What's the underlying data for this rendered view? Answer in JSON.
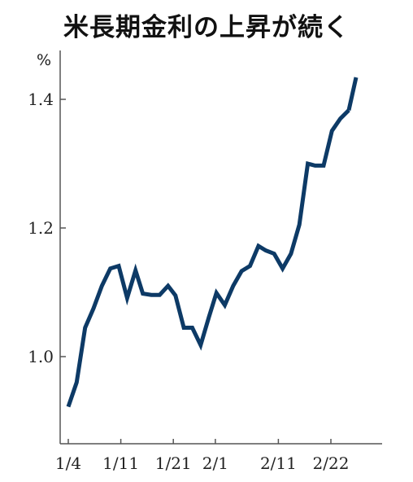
{
  "chart_data": {
    "type": "line",
    "title": "米長期金利の上昇が続く",
    "ylabel": "%",
    "xlabel": "",
    "ylim": [
      0.87,
      1.5
    ],
    "yticks": [
      1.0,
      1.2,
      1.4
    ],
    "ytick_labels": [
      "1.0",
      "1.2",
      "1.4"
    ],
    "xlim": [
      0,
      34.6
    ],
    "xticks": [
      0,
      5,
      10,
      14,
      20,
      25
    ],
    "xtick_labels": [
      "1/4",
      "1/11",
      "1/21",
      "2/1",
      "2/11",
      "2/22"
    ],
    "grid": false,
    "line_color": "#0d3a66",
    "series": [
      {
        "x": [
          0,
          0.8,
          1.6,
          2.4,
          3.2,
          4.0,
          4.8,
          5.6,
          6.4,
          7.1,
          7.9,
          8.7,
          9.5,
          10.2,
          11.0,
          11.8,
          12.6,
          13.4,
          14.1,
          14.9,
          15.7,
          16.5,
          17.3,
          18.1,
          18.8,
          19.6,
          20.4,
          21.2,
          22.0,
          22.8,
          23.5,
          24.3,
          25.1,
          25.9,
          26.7
        ],
        "values": [
          0.922,
          0.96,
          1.045,
          1.075,
          1.11,
          1.137,
          1.141,
          1.091,
          1.134,
          1.098,
          1.096,
          1.096,
          1.11,
          1.095,
          1.045,
          1.045,
          1.018,
          1.062,
          1.099,
          1.08,
          1.11,
          1.133,
          1.141,
          1.172,
          1.165,
          1.16,
          1.137,
          1.16,
          1.205,
          1.3,
          1.297,
          1.297,
          1.351,
          1.37,
          1.383
        ]
      },
      {
        "x": [
          26.7,
          27.4
        ],
        "values": [
          1.383,
          1.434
        ]
      }
    ]
  }
}
